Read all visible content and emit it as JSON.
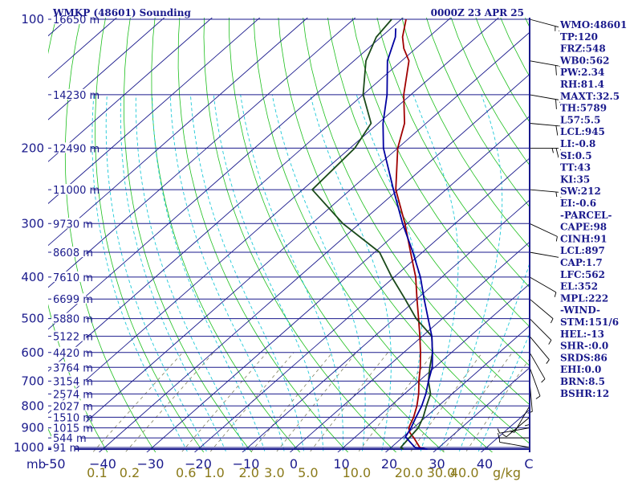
{
  "header": {
    "title": "WMKP (48601) Sounding",
    "timestamp": "0000Z 23 APR 25"
  },
  "axes": {
    "pressure_unit": "mb",
    "mixing_unit": "g/kg"
  },
  "colors": {
    "axis": "#1a1a8c",
    "isotherm": "#1a1a8c",
    "isobar": "#1a1a8c",
    "dry_adiabat": "#1dbf1d",
    "moist_adiabat": "#1ec9d8",
    "mixing_ratio": "#808060",
    "temperature": "#a00000",
    "dewpoint": "#1a4a1a",
    "parcel": "#0000a0",
    "barb": "#000000"
  },
  "chart_data": {
    "type": "skew-t log-p",
    "pressure_levels_mb": [
      100,
      200,
      300,
      400,
      500,
      600,
      700,
      800,
      900,
      1000
    ],
    "pressure_tick_labels": [
      "100",
      "200",
      "300",
      "400",
      "500",
      "600",
      "700",
      "800",
      "900",
      "1000"
    ],
    "temperature_ticks_c": [
      -50,
      -40,
      -30,
      -20,
      -10,
      0,
      10,
      20,
      30,
      40
    ],
    "temperature_tick_labels": [
      "-50",
      "−40",
      "−30",
      "−20",
      "−10",
      "0",
      "10",
      "20",
      "30",
      "40"
    ],
    "right_label": "C",
    "mixing_ratio_labels": [
      "0.1",
      "0.2",
      "0.6",
      "1.0",
      "2.0",
      "3.0",
      "5.0",
      "10.0",
      "20.0",
      "30.0",
      "40.0"
    ],
    "mixing_ratio_values": [
      0.1,
      0.2,
      0.6,
      1.0,
      2.0,
      3.0,
      5.0,
      10.0,
      20.0,
      30.0,
      40.0
    ],
    "height_labels": [
      {
        "p": 100,
        "text": "16650 m"
      },
      {
        "p": 150,
        "text": "14230 m"
      },
      {
        "p": 200,
        "text": "12490 m"
      },
      {
        "p": 250,
        "text": "11000 m"
      },
      {
        "p": 300,
        "text": "9730 m"
      },
      {
        "p": 350,
        "text": "8608 m"
      },
      {
        "p": 400,
        "text": "7610 m"
      },
      {
        "p": 450,
        "text": "6699 m"
      },
      {
        "p": 500,
        "text": "5880 m"
      },
      {
        "p": 550,
        "text": "5122 m"
      },
      {
        "p": 600,
        "text": "4420 m"
      },
      {
        "p": 650,
        "text": "3764 m"
      },
      {
        "p": 700,
        "text": "3154 m"
      },
      {
        "p": 750,
        "text": "2574 m"
      },
      {
        "p": 800,
        "text": "2027 m"
      },
      {
        "p": 850,
        "text": "1510 m"
      },
      {
        "p": 900,
        "text": "1015 m"
      },
      {
        "p": 950,
        "text": "544 m"
      },
      {
        "p": 1000,
        "text": "91 m"
      }
    ],
    "series": [
      {
        "name": "temperature",
        "points": [
          [
            1009,
            27.5
          ],
          [
            1000,
            26
          ],
          [
            950,
            22.5
          ],
          [
            925,
            20.5
          ],
          [
            900,
            19
          ],
          [
            850,
            17.5
          ],
          [
            800,
            15.5
          ],
          [
            750,
            13
          ],
          [
            700,
            10
          ],
          [
            650,
            7
          ],
          [
            600,
            3.5
          ],
          [
            550,
            -0.5
          ],
          [
            500,
            -5
          ],
          [
            450,
            -10
          ],
          [
            400,
            -15.5
          ],
          [
            350,
            -22.5
          ],
          [
            300,
            -30.5
          ],
          [
            250,
            -40.5
          ],
          [
            200,
            -50
          ],
          [
            175,
            -54.5
          ],
          [
            150,
            -61.5
          ],
          [
            125,
            -68.5
          ],
          [
            117,
            -72.5
          ],
          [
            110,
            -75.5
          ],
          [
            100,
            -79
          ]
        ]
      },
      {
        "name": "dewpoint",
        "points": [
          [
            1009,
            23
          ],
          [
            1000,
            22
          ],
          [
            950,
            21.5
          ],
          [
            900,
            21
          ],
          [
            850,
            19.5
          ],
          [
            800,
            17.5
          ],
          [
            750,
            15.5
          ],
          [
            700,
            12
          ],
          [
            650,
            9
          ],
          [
            600,
            6
          ],
          [
            550,
            2
          ],
          [
            500,
            -5.5
          ],
          [
            450,
            -12.5
          ],
          [
            400,
            -20.5
          ],
          [
            350,
            -29
          ],
          [
            300,
            -43.5
          ],
          [
            250,
            -58
          ],
          [
            200,
            -59
          ],
          [
            175,
            -61.5
          ],
          [
            150,
            -70
          ],
          [
            125,
            -77.5
          ],
          [
            110,
            -81
          ],
          [
            100,
            -82
          ]
        ]
      },
      {
        "name": "parcel",
        "points": [
          [
            1009,
            28
          ],
          [
            1000,
            25
          ],
          [
            945,
            20.5
          ],
          [
            900,
            19.5
          ],
          [
            850,
            18
          ],
          [
            800,
            16.5
          ],
          [
            750,
            14.5
          ],
          [
            700,
            12
          ],
          [
            650,
            9.5
          ],
          [
            600,
            6
          ],
          [
            550,
            2
          ],
          [
            500,
            -3
          ],
          [
            450,
            -8.5
          ],
          [
            400,
            -14.5
          ],
          [
            350,
            -22
          ],
          [
            300,
            -31
          ],
          [
            250,
            -41
          ],
          [
            200,
            -53
          ],
          [
            175,
            -59
          ],
          [
            150,
            -65
          ],
          [
            125,
            -73
          ],
          [
            110,
            -77
          ],
          [
            105,
            -79
          ]
        ]
      }
    ],
    "wind_barbs": [
      {
        "p": 100,
        "dir": 105,
        "spd": 15
      },
      {
        "p": 125,
        "dir": 100,
        "spd": 20
      },
      {
        "p": 150,
        "dir": 100,
        "spd": 20
      },
      {
        "p": 175,
        "dir": 95,
        "spd": 20
      },
      {
        "p": 200,
        "dir": 90,
        "spd": 25
      },
      {
        "p": 250,
        "dir": 95,
        "spd": 15
      },
      {
        "p": 300,
        "dir": 115,
        "spd": 5
      },
      {
        "p": 350,
        "dir": 100,
        "spd": 5
      },
      {
        "p": 400,
        "dir": 120,
        "spd": 5
      },
      {
        "p": 450,
        "dir": 130,
        "spd": 5
      },
      {
        "p": 500,
        "dir": 135,
        "spd": 5
      },
      {
        "p": 550,
        "dir": 140,
        "spd": 5
      },
      {
        "p": 600,
        "dir": 150,
        "spd": 5
      },
      {
        "p": 650,
        "dir": 160,
        "spd": 5
      },
      {
        "p": 700,
        "dir": 175,
        "spd": 5
      },
      {
        "p": 750,
        "dir": 180,
        "spd": 5
      },
      {
        "p": 800,
        "dir": 210,
        "spd": 5
      },
      {
        "p": 850,
        "dir": 230,
        "spd": 5
      },
      {
        "p": 900,
        "dir": 260,
        "spd": 5
      },
      {
        "p": 950,
        "dir": 270,
        "spd": 5
      },
      {
        "p": 1000,
        "dir": 280,
        "spd": 5
      }
    ]
  },
  "indices": [
    "WMO:48601",
    "TP:120",
    "FRZ:548",
    "WB0:562",
    "PW:2.34",
    "RH:81.4",
    "MAXT:32.5",
    "TH:5789",
    "L57:5.5",
    "LCL:945",
    "LI:-0.8",
    "SI:0.5",
    "TT:43",
    "KI:35",
    "SW:212",
    "EI:-0.6",
    "-PARCEL-",
    "CAPE:98",
    "CINH:91",
    "LCL:897",
    "CAP:1.7",
    "LFC:562",
    "EL:352",
    "MPL:222",
    "-WIND-",
    "STM:151/6",
    "HEL:-13",
    "SHR-:0.0",
    "SRDS:86",
    "EHI:0.0",
    "BRN:8.5",
    "BSHR:12"
  ]
}
